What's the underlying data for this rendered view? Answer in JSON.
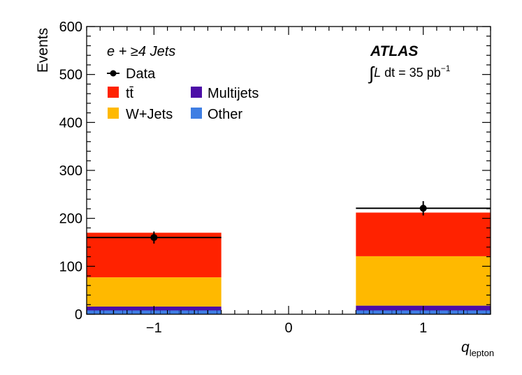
{
  "chart_data": {
    "type": "bar",
    "stacked": true,
    "categories": [
      -1,
      1
    ],
    "x_tick_labels": [
      "−1",
      "0",
      "1"
    ],
    "x_ticks": [
      -1,
      0,
      1
    ],
    "xlim": [
      -1.5,
      1.5
    ],
    "bin_ranges": [
      [
        -1.5,
        -0.5
      ],
      [
        0.5,
        1.5
      ]
    ],
    "ylim": [
      0,
      600
    ],
    "y_ticks": [
      0,
      100,
      200,
      300,
      400,
      500,
      600
    ],
    "xlabel": "q",
    "xlabel_sub": "lepton",
    "ylabel": "Events",
    "grid": false,
    "legend_position": "top-left",
    "series": [
      {
        "name": "Other",
        "color": "#3f7ee3",
        "values": [
          8,
          8
        ]
      },
      {
        "name": "Multijets",
        "color": "#4c0ea7",
        "values": [
          8,
          10
        ]
      },
      {
        "name": "W+Jets",
        "color": "#ffb900",
        "values": [
          61,
          103
        ]
      },
      {
        "name": "tt̄",
        "color": "#ff2200",
        "values": [
          93,
          91
        ]
      }
    ],
    "data": {
      "name": "Data",
      "x": [
        -1,
        1
      ],
      "y": [
        160,
        221
      ],
      "yerr": [
        12.6,
        14.9
      ]
    },
    "legend": {
      "entries": [
        "Data",
        "tt̄",
        "Multijets",
        "W+Jets",
        "Other"
      ]
    },
    "annotations": {
      "channel": "e + ≥4 Jets",
      "experiment": "ATLAS",
      "lumi_prefix": "∫",
      "lumi_L": "L",
      "lumi_text": " dt = 35 pb",
      "lumi_exp": "−1"
    }
  }
}
